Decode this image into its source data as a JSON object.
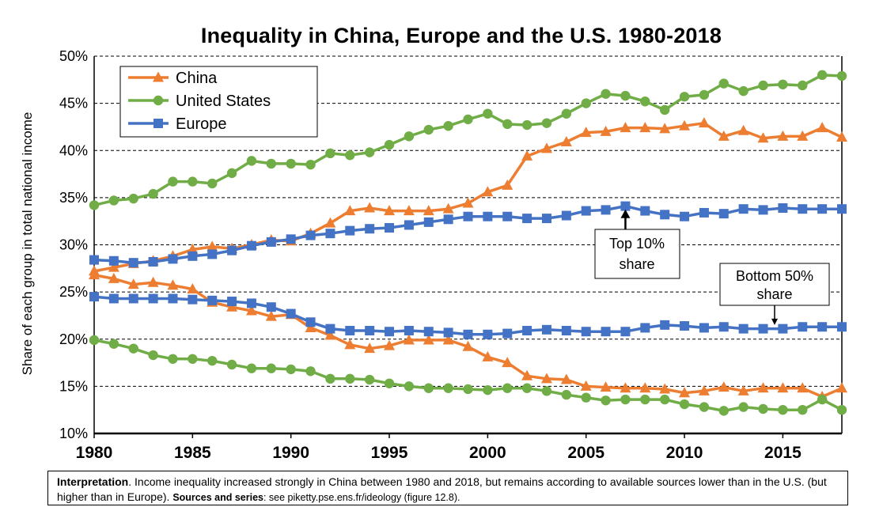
{
  "chart_data": {
    "type": "line",
    "title": "Inequality in China, Europe and the U.S. 1980-2018",
    "xlabel": "",
    "ylabel": "Share of each group in total national income",
    "xlim": [
      1980,
      2018
    ],
    "ylim": [
      10,
      50
    ],
    "x_ticks": [
      "1980",
      "1985",
      "1990",
      "1995",
      "2000",
      "2005",
      "2010",
      "2015"
    ],
    "y_ticks": [
      "10%",
      "15%",
      "20%",
      "25%",
      "30%",
      "35%",
      "40%",
      "45%",
      "50%"
    ],
    "grid": "horizontal dashed",
    "legend_position": "top-left",
    "x": [
      1980,
      1981,
      1982,
      1983,
      1984,
      1985,
      1986,
      1987,
      1988,
      1989,
      1990,
      1991,
      1992,
      1993,
      1994,
      1995,
      1996,
      1997,
      1998,
      1999,
      2000,
      2001,
      2002,
      2003,
      2004,
      2005,
      2006,
      2007,
      2008,
      2009,
      2010,
      2011,
      2012,
      2013,
      2014,
      2015,
      2016,
      2017,
      2018
    ],
    "series": [
      {
        "name": "China",
        "group": "Top 10% share",
        "color": "#ED7D31",
        "marker": "triangle",
        "values": [
          27.2,
          27.6,
          28.0,
          28.3,
          28.8,
          29.5,
          29.8,
          29.6,
          30.0,
          30.5,
          30.4,
          31.2,
          32.3,
          33.6,
          33.9,
          33.6,
          33.6,
          33.6,
          33.8,
          34.4,
          35.6,
          36.3,
          39.4,
          40.2,
          40.9,
          41.9,
          42.0,
          42.4,
          42.4,
          42.3,
          42.6,
          42.9,
          41.5,
          42.1,
          41.3,
          41.5,
          41.5,
          42.4,
          41.4
        ]
      },
      {
        "name": "United States",
        "group": "Top 10% share",
        "color": "#70AD47",
        "marker": "circle",
        "values": [
          34.2,
          34.7,
          34.9,
          35.4,
          36.7,
          36.7,
          36.5,
          37.6,
          38.9,
          38.6,
          38.6,
          38.5,
          39.7,
          39.5,
          39.8,
          40.6,
          41.5,
          42.2,
          42.6,
          43.3,
          43.9,
          42.8,
          42.7,
          42.9,
          43.9,
          45.0,
          46.0,
          45.8,
          45.2,
          44.3,
          45.7,
          45.9,
          47.1,
          46.3,
          46.9,
          47.0,
          46.9,
          48.0,
          47.9
        ]
      },
      {
        "name": "Europe",
        "group": "Top 10% share",
        "color": "#4472C4",
        "marker": "square",
        "values": [
          28.4,
          28.3,
          28.1,
          28.2,
          28.5,
          28.8,
          29.0,
          29.4,
          29.9,
          30.3,
          30.6,
          31.0,
          31.2,
          31.5,
          31.7,
          31.8,
          32.1,
          32.4,
          32.7,
          33.0,
          33.0,
          33.0,
          32.8,
          32.8,
          33.1,
          33.6,
          33.7,
          34.1,
          33.6,
          33.2,
          33.0,
          33.4,
          33.3,
          33.8,
          33.7,
          33.9,
          33.8,
          33.8,
          33.8
        ]
      },
      {
        "name": "China",
        "group": "Bottom 50% share",
        "color": "#ED7D31",
        "marker": "triangle",
        "values": [
          26.8,
          26.4,
          25.8,
          26.0,
          25.7,
          25.3,
          23.9,
          23.4,
          23.0,
          22.4,
          22.6,
          21.2,
          20.4,
          19.4,
          19.0,
          19.3,
          19.9,
          19.9,
          19.9,
          19.2,
          18.1,
          17.5,
          16.1,
          15.8,
          15.7,
          15.0,
          14.9,
          14.8,
          14.8,
          14.7,
          14.3,
          14.5,
          14.9,
          14.5,
          14.8,
          14.8,
          14.8,
          13.9,
          14.8
        ]
      },
      {
        "name": "United States",
        "group": "Bottom 50% share",
        "color": "#70AD47",
        "marker": "circle",
        "values": [
          19.9,
          19.5,
          19.0,
          18.3,
          17.9,
          17.9,
          17.7,
          17.3,
          16.9,
          16.9,
          16.8,
          16.6,
          15.8,
          15.8,
          15.7,
          15.3,
          15.0,
          14.8,
          14.8,
          14.7,
          14.6,
          14.8,
          14.8,
          14.5,
          14.1,
          13.8,
          13.5,
          13.6,
          13.6,
          13.6,
          13.1,
          12.8,
          12.4,
          12.8,
          12.6,
          12.5,
          12.5,
          13.6,
          12.5
        ]
      },
      {
        "name": "Europe",
        "group": "Bottom 50% share",
        "color": "#4472C4",
        "marker": "square",
        "values": [
          24.5,
          24.3,
          24.3,
          24.3,
          24.3,
          24.2,
          24.1,
          24.0,
          23.8,
          23.4,
          22.7,
          21.8,
          21.1,
          20.9,
          20.9,
          20.8,
          20.9,
          20.8,
          20.7,
          20.5,
          20.5,
          20.6,
          20.9,
          21.0,
          20.9,
          20.8,
          20.8,
          20.8,
          21.2,
          21.5,
          21.4,
          21.2,
          21.3,
          21.1,
          21.1,
          21.1,
          21.3,
          21.3,
          21.3
        ]
      }
    ],
    "legend": [
      "China",
      "United States",
      "Europe"
    ],
    "annotations": [
      {
        "text_lines": [
          "Top 10%",
          "share"
        ],
        "points_to_year": 2007,
        "points_to_value": 34.0
      },
      {
        "text_lines": [
          "Bottom 50%",
          "share"
        ],
        "points_to_year": 2014,
        "points_to_value": 21.5
      }
    ]
  },
  "note": {
    "label": "Interpretation",
    "text": ". Income inequality increased strongly in China between 1980 and 2018, but remains according to available sources lower than in the U.S. (but higher than in Europe). ",
    "sources_label": "Sources and series",
    "sources_text": ": see piketty.pse.ens.fr/ideology (figure 12.8)."
  }
}
